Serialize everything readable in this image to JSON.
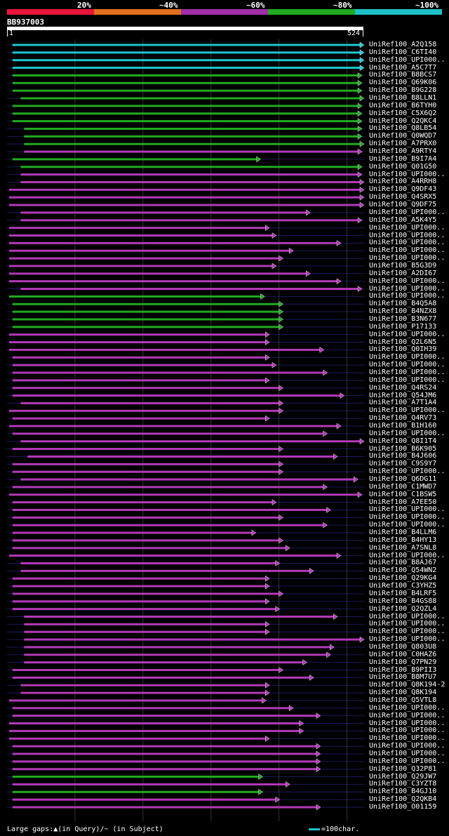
{
  "colors": {
    "cyan": "#1ec8d0",
    "green": "#22aa22",
    "magenta": "#b23ab8",
    "grid": "#1a1a5a",
    "gridline": "#555555"
  },
  "legend": [
    {
      "label": "20%",
      "color": "#e8163a"
    },
    {
      "label": "~40%",
      "color": "#e07020"
    },
    {
      "label": "~60%",
      "color": "#a030a8"
    },
    {
      "label": "~80%",
      "color": "#22aa22"
    },
    {
      "label": "~100%",
      "color": "#1fc0c8"
    }
  ],
  "query": {
    "id": "BB937003",
    "start": "1",
    "end": "524",
    "length": 524
  },
  "footer": {
    "text": "Large gaps:▲(in Query)/~ (in Subject)",
    "scale": "=100char."
  },
  "hits": [
    {
      "name": "UniRef100_A2Q158",
      "s": 8,
      "e": 524,
      "c": "cyan"
    },
    {
      "name": "UniRef100_C6TI40",
      "s": 8,
      "e": 524,
      "c": "cyan"
    },
    {
      "name": "UniRef100_UPI000..",
      "s": 8,
      "e": 524,
      "c": "cyan"
    },
    {
      "name": "UniRef100_A5C7T7",
      "s": 8,
      "e": 524,
      "c": "cyan"
    },
    {
      "name": "UniRef100_B8BCS7",
      "s": 8,
      "e": 521,
      "c": "green"
    },
    {
      "name": "UniRef100_Q69K06",
      "s": 8,
      "e": 521,
      "c": "green"
    },
    {
      "name": "UniRef100_B9G228",
      "s": 8,
      "e": 521,
      "c": "green"
    },
    {
      "name": "UniRef100_B8LLN1",
      "s": 20,
      "e": 524,
      "c": "green"
    },
    {
      "name": "UniRef100_B6TYH0",
      "s": 8,
      "e": 521,
      "c": "green"
    },
    {
      "name": "UniRef100_C5X6Q2",
      "s": 8,
      "e": 521,
      "c": "green"
    },
    {
      "name": "UniRef100_Q2QKC4",
      "s": 8,
      "e": 521,
      "c": "green"
    },
    {
      "name": "UniRef100_Q8LB54",
      "s": 25,
      "e": 521,
      "c": "green"
    },
    {
      "name": "UniRef100_Q0WQD7",
      "s": 25,
      "e": 521,
      "c": "green"
    },
    {
      "name": "UniRef100_A7PRX0",
      "s": 25,
      "e": 524,
      "c": "green"
    },
    {
      "name": "UniRef100_A9RTY4",
      "s": 25,
      "e": 521,
      "c": "magenta"
    },
    {
      "name": "UniRef100_B9I7A4",
      "s": 8,
      "e": 372,
      "c": "green"
    },
    {
      "name": "UniRef100_Q01G50",
      "s": 20,
      "e": 521,
      "c": "green"
    },
    {
      "name": "UniRef100_UPI000..",
      "s": 20,
      "e": 521,
      "c": "magenta"
    },
    {
      "name": "UniRef100_A4RRH8",
      "s": 20,
      "e": 524,
      "c": "magenta"
    },
    {
      "name": "UniRef100_Q9DF43",
      "s": 3,
      "e": 524,
      "c": "magenta"
    },
    {
      "name": "UniRef100_Q4SRX5",
      "s": 3,
      "e": 524,
      "c": "magenta"
    },
    {
      "name": "UniRef100_Q9DF75",
      "s": 3,
      "e": 524,
      "c": "magenta"
    },
    {
      "name": "UniRef100_UPI000..",
      "s": 20,
      "e": 445,
      "c": "magenta"
    },
    {
      "name": "UniRef100_A5K4Y5",
      "s": 20,
      "e": 521,
      "c": "magenta"
    },
    {
      "name": "UniRef100_UPI000..",
      "s": 3,
      "e": 385,
      "c": "magenta"
    },
    {
      "name": "UniRef100_UPI000..",
      "s": 3,
      "e": 395,
      "c": "magenta"
    },
    {
      "name": "UniRef100_UPI000..",
      "s": 3,
      "e": 490,
      "c": "magenta"
    },
    {
      "name": "UniRef100_UPI000..",
      "s": 3,
      "e": 420,
      "c": "magenta"
    },
    {
      "name": "UniRef100_UPI000..",
      "s": 3,
      "e": 405,
      "c": "magenta"
    },
    {
      "name": "UniRef100_B5G3D9",
      "s": 3,
      "e": 395,
      "c": "magenta"
    },
    {
      "name": "UniRef100_A2DI67",
      "s": 3,
      "e": 445,
      "c": "magenta"
    },
    {
      "name": "UniRef100_UPI000..",
      "s": 3,
      "e": 490,
      "c": "magenta"
    },
    {
      "name": "UniRef100_UPI000..",
      "s": 20,
      "e": 521,
      "c": "magenta"
    },
    {
      "name": "UniRef100_UPI000..",
      "s": 3,
      "e": 378,
      "c": "green"
    },
    {
      "name": "UniRef100_B4Q5A8",
      "s": 8,
      "e": 405,
      "c": "green"
    },
    {
      "name": "UniRef100_B4NZX8",
      "s": 8,
      "e": 405,
      "c": "green"
    },
    {
      "name": "UniRef100_B3N677",
      "s": 8,
      "e": 405,
      "c": "green"
    },
    {
      "name": "UniRef100_P17133",
      "s": 8,
      "e": 405,
      "c": "green"
    },
    {
      "name": "UniRef100_UPI000..",
      "s": 3,
      "e": 385,
      "c": "magenta"
    },
    {
      "name": "UniRef100_Q2L6N5",
      "s": 3,
      "e": 385,
      "c": "magenta"
    },
    {
      "name": "UniRef100_Q0IH39",
      "s": 3,
      "e": 465,
      "c": "magenta"
    },
    {
      "name": "UniRef100_UPI000..",
      "s": 8,
      "e": 385,
      "c": "magenta"
    },
    {
      "name": "UniRef100_UPI000..",
      "s": 8,
      "e": 395,
      "c": "magenta"
    },
    {
      "name": "UniRef100_UPI000..",
      "s": 8,
      "e": 470,
      "c": "magenta"
    },
    {
      "name": "UniRef100_UPI000..",
      "s": 8,
      "e": 385,
      "c": "magenta"
    },
    {
      "name": "UniRef100_Q4RS24",
      "s": 8,
      "e": 405,
      "c": "magenta"
    },
    {
      "name": "UniRef100_Q54JM6",
      "s": 8,
      "e": 495,
      "c": "magenta"
    },
    {
      "name": "UniRef100_A7T1A4",
      "s": 20,
      "e": 405,
      "c": "magenta"
    },
    {
      "name": "UniRef100_UPI000..",
      "s": 3,
      "e": 405,
      "c": "magenta"
    },
    {
      "name": "UniRef100_Q4RV73",
      "s": 8,
      "e": 385,
      "c": "magenta"
    },
    {
      "name": "UniRef100_B1H160",
      "s": 3,
      "e": 490,
      "c": "magenta"
    },
    {
      "name": "UniRef100_UPI000..",
      "s": 8,
      "e": 470,
      "c": "magenta"
    },
    {
      "name": "UniRef100_Q8I1T4",
      "s": 20,
      "e": 524,
      "c": "magenta"
    },
    {
      "name": "UniRef100_B6K905",
      "s": 8,
      "e": 405,
      "c": "magenta"
    },
    {
      "name": "UniRef100_B4J606",
      "s": 30,
      "e": 485,
      "c": "magenta"
    },
    {
      "name": "UniRef100_C9S9Y7",
      "s": 8,
      "e": 405,
      "c": "magenta"
    },
    {
      "name": "UniRef100_UPI000..",
      "s": 8,
      "e": 405,
      "c": "magenta"
    },
    {
      "name": "UniRef100_Q6DG11",
      "s": 20,
      "e": 515,
      "c": "magenta"
    },
    {
      "name": "UniRef100_C1MWD7",
      "s": 8,
      "e": 470,
      "c": "magenta"
    },
    {
      "name": "UniRef100_C1BSW5",
      "s": 3,
      "e": 521,
      "c": "magenta"
    },
    {
      "name": "UniRef100_A7EE50",
      "s": 8,
      "e": 395,
      "c": "magenta"
    },
    {
      "name": "UniRef100_UPI000..",
      "s": 8,
      "e": 475,
      "c": "magenta"
    },
    {
      "name": "UniRef100_UPI000..",
      "s": 8,
      "e": 405,
      "c": "magenta"
    },
    {
      "name": "UniRef100_UPI000..",
      "s": 8,
      "e": 470,
      "c": "magenta"
    },
    {
      "name": "UniRef100_B4LLM6",
      "s": 8,
      "e": 365,
      "c": "magenta"
    },
    {
      "name": "UniRef100_B4HY13",
      "s": 8,
      "e": 405,
      "c": "magenta"
    },
    {
      "name": "UniRef100_A7SNL8",
      "s": 8,
      "e": 415,
      "c": "magenta"
    },
    {
      "name": "UniRef100_UPI000..",
      "s": 3,
      "e": 490,
      "c": "magenta"
    },
    {
      "name": "UniRef100_B8AJ67",
      "s": 20,
      "e": 400,
      "c": "magenta"
    },
    {
      "name": "UniRef100_Q54WN2",
      "s": 20,
      "e": 450,
      "c": "magenta"
    },
    {
      "name": "UniRef100_Q29KG4",
      "s": 8,
      "e": 385,
      "c": "magenta"
    },
    {
      "name": "UniRef100_C3YHZ5",
      "s": 8,
      "e": 385,
      "c": "magenta"
    },
    {
      "name": "UniRef100_B4LRF5",
      "s": 8,
      "e": 405,
      "c": "magenta"
    },
    {
      "name": "UniRef100_B4GS88",
      "s": 8,
      "e": 385,
      "c": "magenta"
    },
    {
      "name": "UniRef100_Q2QZL4",
      "s": 8,
      "e": 400,
      "c": "magenta"
    },
    {
      "name": "UniRef100_UPI000..",
      "s": 25,
      "e": 485,
      "c": "magenta"
    },
    {
      "name": "UniRef100_UPI000..",
      "s": 25,
      "e": 385,
      "c": "magenta"
    },
    {
      "name": "UniRef100_UPI000..",
      "s": 25,
      "e": 385,
      "c": "magenta"
    },
    {
      "name": "UniRef100_UPI000..",
      "s": 25,
      "e": 524,
      "c": "magenta"
    },
    {
      "name": "UniRef100_Q803U8",
      "s": 25,
      "e": 480,
      "c": "magenta"
    },
    {
      "name": "UniRef100_C0HAZ6",
      "s": 25,
      "e": 475,
      "c": "magenta"
    },
    {
      "name": "UniRef100_Q7PN29",
      "s": 25,
      "e": 440,
      "c": "magenta"
    },
    {
      "name": "UniRef100_B9PII3",
      "s": 8,
      "e": 405,
      "c": "magenta"
    },
    {
      "name": "UniRef100_B8M7U7",
      "s": 8,
      "e": 450,
      "c": "magenta"
    },
    {
      "name": "UniRef100_Q8K194-2",
      "s": 20,
      "e": 385,
      "c": "magenta"
    },
    {
      "name": "UniRef100_Q8K194",
      "s": 20,
      "e": 385,
      "c": "magenta"
    },
    {
      "name": "UniRef100_Q5VTL8",
      "s": 3,
      "e": 380,
      "c": "magenta"
    },
    {
      "name": "UniRef100_UPI000..",
      "s": 8,
      "e": 420,
      "c": "magenta"
    },
    {
      "name": "UniRef100_UPI000..",
      "s": 8,
      "e": 460,
      "c": "magenta"
    },
    {
      "name": "UniRef100_UPI000..",
      "s": 3,
      "e": 435,
      "c": "magenta"
    },
    {
      "name": "UniRef100_UPI000..",
      "s": 3,
      "e": 435,
      "c": "magenta"
    },
    {
      "name": "UniRef100_UPI000..",
      "s": 3,
      "e": 385,
      "c": "magenta"
    },
    {
      "name": "UniRef100_UPI000..",
      "s": 8,
      "e": 460,
      "c": "magenta"
    },
    {
      "name": "UniRef100_UPI000..",
      "s": 8,
      "e": 460,
      "c": "magenta"
    },
    {
      "name": "UniRef100_UPI000..",
      "s": 8,
      "e": 460,
      "c": "magenta"
    },
    {
      "name": "UniRef100_Q32P81",
      "s": 8,
      "e": 460,
      "c": "magenta"
    },
    {
      "name": "UniRef100_Q29JW7",
      "s": 8,
      "e": 375,
      "c": "green"
    },
    {
      "name": "UniRef100_C3YZT8",
      "s": 8,
      "e": 415,
      "c": "magenta"
    },
    {
      "name": "UniRef100_B4GJ10",
      "s": 8,
      "e": 375,
      "c": "green"
    },
    {
      "name": "UniRef100_Q2QKB4",
      "s": 8,
      "e": 400,
      "c": "magenta"
    },
    {
      "name": "UniRef100_O01159",
      "s": 8,
      "e": 460,
      "c": "magenta"
    }
  ]
}
